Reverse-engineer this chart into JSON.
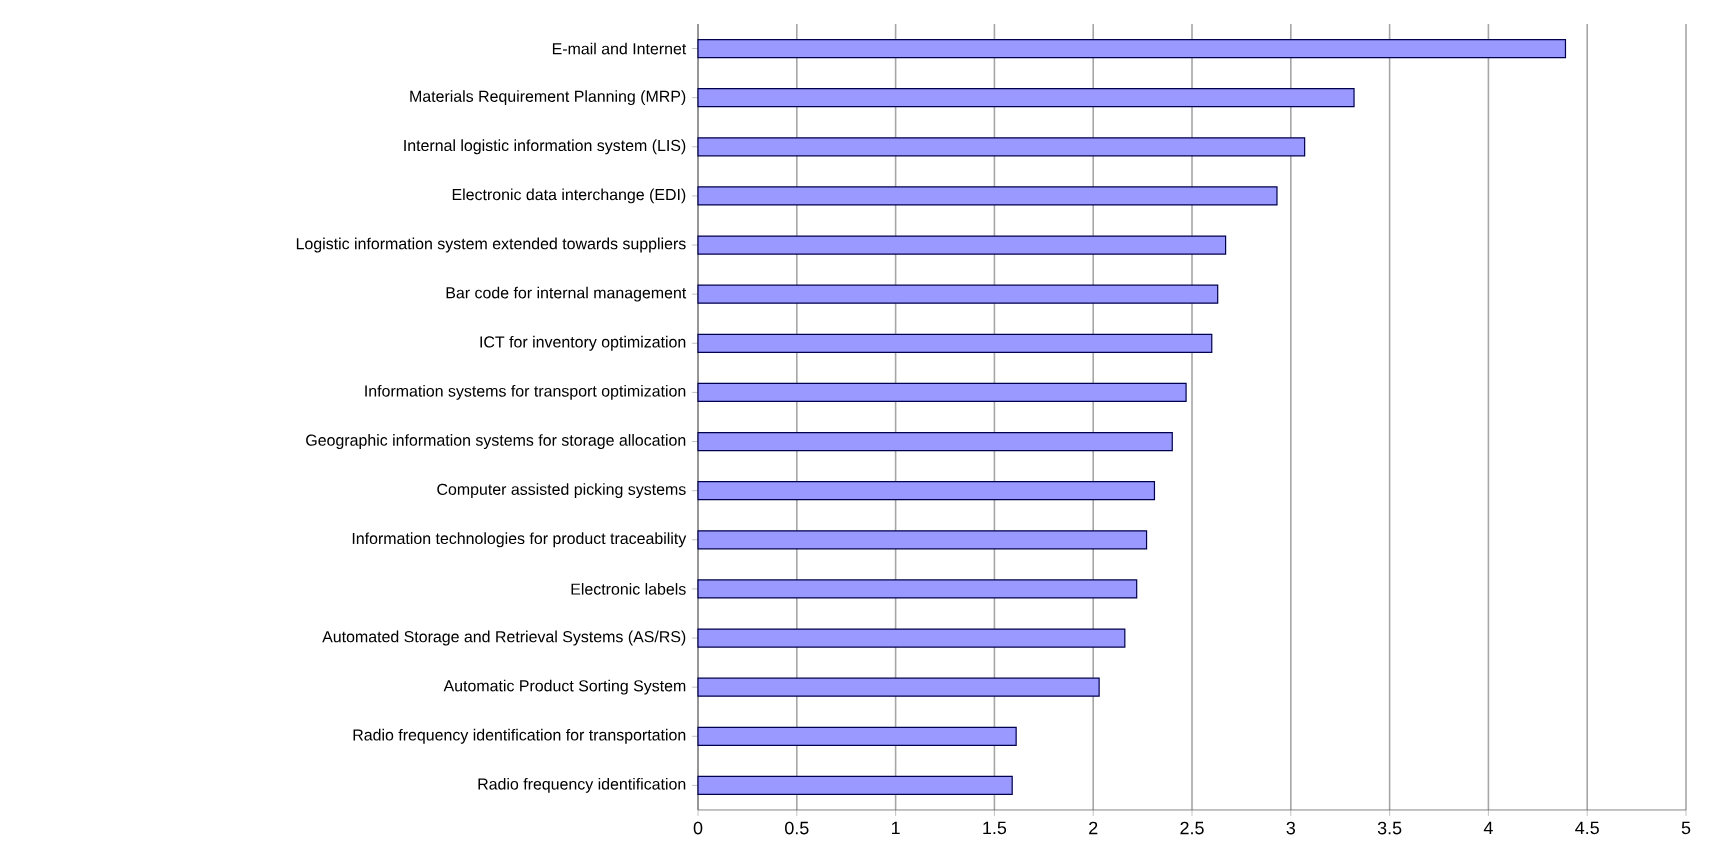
{
  "chart_data": {
    "type": "bar",
    "orientation": "horizontal",
    "categories": [
      "E-mail and Internet",
      "Materials Requirement Planning (MRP)",
      "Internal logistic information system (LIS)",
      "Electronic data interchange (EDI)",
      "Logistic information system extended towards suppliers",
      "Bar code for internal management",
      "ICT for inventory optimization",
      "Information systems for transport optimization",
      "Geographic information systems for storage allocation",
      "Computer assisted picking systems",
      "Information technologies for product traceability",
      "Electronic labels",
      "Automated Storage and Retrieval Systems (AS/RS)",
      "Automatic Product Sorting System",
      "Radio frequency identification for transportation",
      "Radio frequency identification"
    ],
    "values": [
      4.39,
      3.32,
      3.07,
      2.93,
      2.67,
      2.63,
      2.6,
      2.47,
      2.4,
      2.31,
      2.27,
      2.22,
      2.16,
      2.03,
      1.61,
      1.59
    ],
    "color": "#9999ff",
    "xlim": [
      0,
      5
    ],
    "xticks": [
      0,
      0.5,
      1,
      1.5,
      2,
      2.5,
      3,
      3.5,
      4,
      4.5,
      5
    ],
    "grid": "x"
  }
}
